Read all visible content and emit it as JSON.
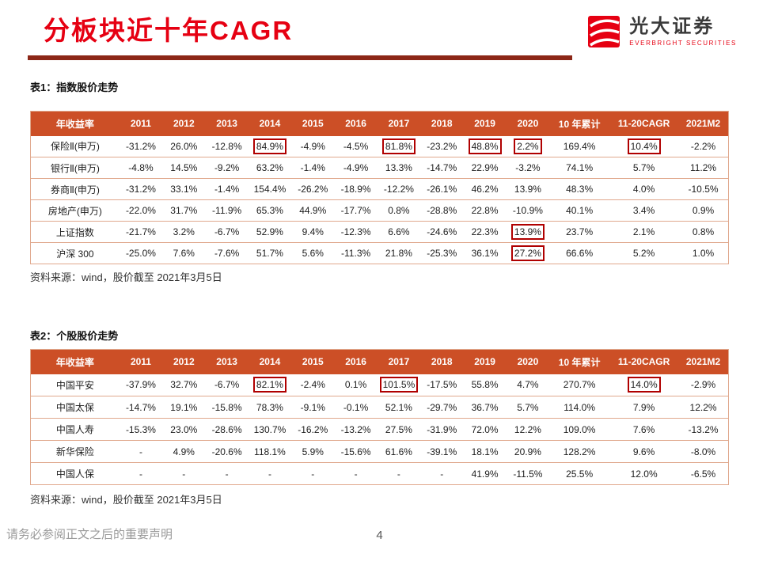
{
  "page": {
    "title": "分板块近十年CAGR",
    "footer_note": "请务必参阅正文之后的重要声明",
    "page_number": "4",
    "brand": {
      "name": "光大证券",
      "subtitle": "EVERBRIGHT SECURITIES"
    }
  },
  "colors": {
    "title_red": "#e60012",
    "rule_maroon": "#8c2717",
    "brand_red": "#e60012",
    "table_header_bg": "#cc4f26",
    "table_border": "#e0a88d",
    "highlight_border": "#b00000"
  },
  "table1": {
    "caption": "表1：指数股价走势",
    "source": "资料来源：wind，股价截至 2021年3月5日",
    "headers": [
      "年收益率",
      "2011",
      "2012",
      "2013",
      "2014",
      "2015",
      "2016",
      "2017",
      "2018",
      "2019",
      "2020",
      "10 年累计",
      "11-20CAGR",
      "2021M2"
    ],
    "rows": [
      {
        "label": "保险Ⅱ(申万)",
        "values": [
          "-31.2%",
          "26.0%",
          "-12.8%",
          "84.9%",
          "-4.9%",
          "-4.5%",
          "81.8%",
          "-23.2%",
          "48.8%",
          "2.2%",
          "169.4%",
          "10.4%",
          "-2.2%"
        ],
        "highlights": [
          3,
          6,
          8,
          9,
          11
        ]
      },
      {
        "label": "银行Ⅱ(申万)",
        "values": [
          "-4.8%",
          "14.5%",
          "-9.2%",
          "63.2%",
          "-1.4%",
          "-4.9%",
          "13.3%",
          "-14.7%",
          "22.9%",
          "-3.2%",
          "74.1%",
          "5.7%",
          "11.2%"
        ],
        "highlights": []
      },
      {
        "label": "券商Ⅱ(申万)",
        "values": [
          "-31.2%",
          "33.1%",
          "-1.4%",
          "154.4%",
          "-26.2%",
          "-18.9%",
          "-12.2%",
          "-26.1%",
          "46.2%",
          "13.9%",
          "48.3%",
          "4.0%",
          "-10.5%"
        ],
        "highlights": []
      },
      {
        "label": "房地产(申万)",
        "values": [
          "-22.0%",
          "31.7%",
          "-11.9%",
          "65.3%",
          "44.9%",
          "-17.7%",
          "0.8%",
          "-28.8%",
          "22.8%",
          "-10.9%",
          "40.1%",
          "3.4%",
          "0.9%"
        ],
        "highlights": []
      },
      {
        "label": "上证指数",
        "values": [
          "-21.7%",
          "3.2%",
          "-6.7%",
          "52.9%",
          "9.4%",
          "-12.3%",
          "6.6%",
          "-24.6%",
          "22.3%",
          "13.9%",
          "23.7%",
          "2.1%",
          "0.8%"
        ],
        "highlights": [
          9
        ]
      },
      {
        "label": "沪深 300",
        "values": [
          "-25.0%",
          "7.6%",
          "-7.6%",
          "51.7%",
          "5.6%",
          "-11.3%",
          "21.8%",
          "-25.3%",
          "36.1%",
          "27.2%",
          "66.6%",
          "5.2%",
          "1.0%"
        ],
        "highlights": [
          9
        ]
      }
    ]
  },
  "table2": {
    "caption": "表2：个股股价走势",
    "source": "资料来源：wind，股价截至 2021年3月5日",
    "headers": [
      "年收益率",
      "2011",
      "2012",
      "2013",
      "2014",
      "2015",
      "2016",
      "2017",
      "2018",
      "2019",
      "2020",
      "10 年累计",
      "11-20CAGR",
      "2021M2"
    ],
    "rows": [
      {
        "label": "中国平安",
        "values": [
          "-37.9%",
          "32.7%",
          "-6.7%",
          "82.1%",
          "-2.4%",
          "0.1%",
          "101.5%",
          "-17.5%",
          "55.8%",
          "4.7%",
          "270.7%",
          "14.0%",
          "-2.9%"
        ],
        "highlights": [
          3,
          6,
          11
        ]
      },
      {
        "label": "中国太保",
        "values": [
          "-14.7%",
          "19.1%",
          "-15.8%",
          "78.3%",
          "-9.1%",
          "-0.1%",
          "52.1%",
          "-29.7%",
          "36.7%",
          "5.7%",
          "114.0%",
          "7.9%",
          "12.2%"
        ],
        "highlights": []
      },
      {
        "label": "中国人寿",
        "values": [
          "-15.3%",
          "23.0%",
          "-28.6%",
          "130.7%",
          "-16.2%",
          "-13.2%",
          "27.5%",
          "-31.9%",
          "72.0%",
          "12.2%",
          "109.0%",
          "7.6%",
          "-13.2%"
        ],
        "highlights": []
      },
      {
        "label": "新华保险",
        "values": [
          "-",
          "4.9%",
          "-20.6%",
          "118.1%",
          "5.9%",
          "-15.6%",
          "61.6%",
          "-39.1%",
          "18.1%",
          "20.9%",
          "128.2%",
          "9.6%",
          "-8.0%"
        ],
        "highlights": []
      },
      {
        "label": "中国人保",
        "values": [
          "-",
          "-",
          "-",
          "-",
          "-",
          "-",
          "-",
          "-",
          "41.9%",
          "-11.5%",
          "25.5%",
          "12.0%",
          "-6.5%"
        ],
        "highlights": []
      }
    ]
  }
}
